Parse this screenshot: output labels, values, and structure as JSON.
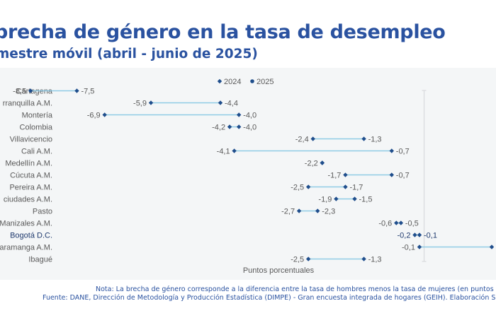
{
  "title": "brecha de género en la tasa de desempleo",
  "subtitle": "mestre móvil (abril - junio de 2025)",
  "colors": {
    "title": "#2a52a0",
    "marker": "#1f4e8c",
    "line": "#8fcbe6",
    "highlight_label": "#1f3a6e",
    "text": "#5a5a5a"
  },
  "notes": {
    "note": "Nota: La brecha de género corresponde a la diferencia entre la tasa de hombres menos la tasa de mujeres (en puntos porcen",
    "source": "Fuente: DANE, Dirección de Metodología y Producción Estadística (DIMPE) - Gran encuesta integrada de hogares (GEIH). Elaboración SDDE-"
  },
  "chart_data": {
    "type": "dumbbell",
    "xlabel": "Puntos porcentuales",
    "xlim": [
      -7.4,
      1.4
    ],
    "legend": {
      "placement": "top",
      "entries": [
        "2024",
        "2025"
      ]
    },
    "categories": [
      "Cartagena",
      "rranquilla A.M.",
      "Montería",
      "Colombia",
      "Villavicencio",
      "Cali A.M.",
      "Medellín A.M.",
      "Cúcuta A.M.",
      "Pereira A.M.",
      "ciudades A.M.",
      "Pasto",
      "Manizales A.M.",
      "Bogotá D.C.",
      "caramanga A.M.",
      "Ibagué"
    ],
    "highlight": "Bogotá D.C.",
    "series": [
      {
        "name": "2024",
        "values": [
          -8.5,
          -5.9,
          -6.9,
          -4.2,
          -2.4,
          -4.1,
          -2.2,
          -1.7,
          -2.5,
          -1.9,
          -2.7,
          -0.6,
          -0.2,
          -0.1,
          -2.5
        ]
      },
      {
        "name": "2025",
        "values": [
          -7.5,
          -4.4,
          -4.0,
          -4.0,
          -1.3,
          -0.7,
          -2.2,
          -0.7,
          -1.7,
          -1.5,
          -2.3,
          -0.5,
          -0.1,
          null,
          -1.3
        ]
      }
    ],
    "value_labels": {
      "2024": [
        "-8,5",
        "-5,9",
        "-6,9",
        "-4,2",
        "-2,4",
        "-4,1",
        "-2,2",
        "-1,7",
        "-2,5",
        "-1,9",
        "-2,7",
        "-0,6",
        "-0,2",
        "-0,1",
        "-2,5"
      ],
      "2025": [
        "-7,5",
        "-4,4",
        "-4,0",
        "-4,0",
        "-1,3",
        "-0,7",
        "-2,2",
        "-0,7",
        "-1,7",
        "-1,5",
        "-2,3",
        "-0,5",
        "-0,1",
        "",
        "-1,3"
      ]
    }
  }
}
